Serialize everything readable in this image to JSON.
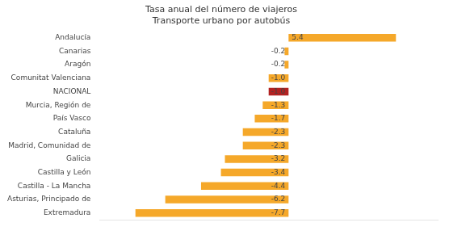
{
  "chart_data": {
    "type": "bar",
    "orientation": "horizontal",
    "title": "Tasa anual del número de viajeros\nTransporte urbano por autobús",
    "categories": [
      "Extremadura",
      "Asturias, Principado de",
      "Castilla - La Mancha",
      "Castilla y León",
      "Galicia",
      "Madrid, Comunidad de",
      "Cataluña",
      "País Vasco",
      "Murcia, Región de",
      "NACIONAL",
      "Comunitat Valenciana",
      "Aragón",
      "Canarias",
      "Andalucía"
    ],
    "values": [
      -7.7,
      -6.2,
      -4.4,
      -3.4,
      -3.2,
      -2.3,
      -2.3,
      -1.7,
      -1.3,
      -1.0,
      -1.0,
      -0.2,
      -0.2,
      5.4
    ],
    "value_labels": [
      "-7.7",
      "-6.2",
      "-4.4",
      "-3.4",
      "-3.2",
      "-2.3",
      "-2.3",
      "-1.7",
      "-1.3",
      "-1.0",
      "-1.0",
      "-0.2",
      "-0.2",
      "5.4"
    ],
    "colors": [
      "#F5A82A",
      "#F5A82A",
      "#F5A82A",
      "#F5A82A",
      "#F5A82A",
      "#F5A82A",
      "#F5A82A",
      "#F5A82A",
      "#F5A82A",
      "#B22222",
      "#F5A82A",
      "#F5A82A",
      "#F5A82A",
      "#F5A82A"
    ],
    "xlim": [
      -9.5,
      7.5
    ],
    "xticks": [],
    "data_labels": true,
    "tick_labels": "y",
    "grid": false
  }
}
